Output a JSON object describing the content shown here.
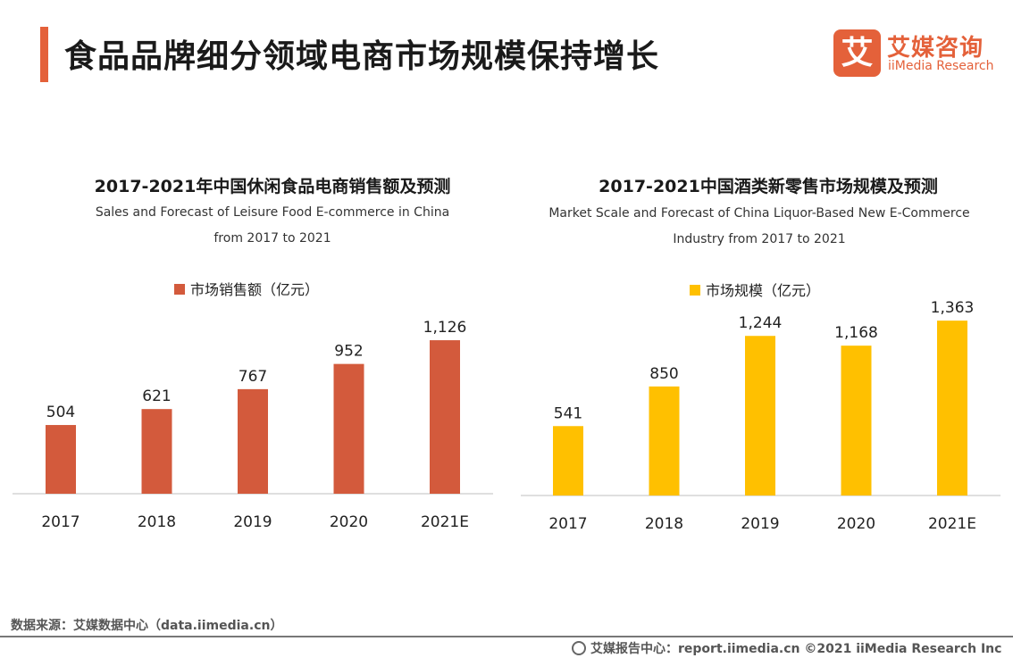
{
  "page": {
    "title": "食品品牌细分领域电商市场规模保持增长"
  },
  "logo": {
    "mark": "艾",
    "name_cn": "艾媒咨询",
    "name_en": "iiMedia Research"
  },
  "footer": {
    "source_left": "数据来源：艾媒数据中心（data.iimedia.cn）",
    "source_right": "艾媒报告中心：report.iimedia.cn ©2021  iiMedia Research  Inc"
  },
  "chart_data": [
    {
      "type": "bar",
      "title": "2017-2021年中国休闲食品电商销售额及预测",
      "subtitle_line1": "Sales and Forecast of Leisure Food E-commerce in China",
      "subtitle_line2": "from 2017 to 2021",
      "categories": [
        "2017",
        "2018",
        "2019",
        "2020",
        "2021E"
      ],
      "series": [
        {
          "name": "市场销售额（亿元）",
          "values": [
            504,
            621,
            767,
            952,
            1126
          ],
          "labels": [
            "504",
            "621",
            "767",
            "952",
            "1,126"
          ],
          "color": "#d35a3c"
        }
      ],
      "legend_position": "top-center"
    },
    {
      "type": "bar",
      "title": "2017-2021中国酒类新零售市场规模及预测",
      "subtitle_line1": "Market Scale and Forecast of China  Liquor-Based New E-Commerce",
      "subtitle_line2": "Industry from 2017 to 2021",
      "categories": [
        "2017",
        "2018",
        "2019",
        "2020",
        "2021E"
      ],
      "series": [
        {
          "name": "市场规模（亿元）",
          "values": [
            541,
            850,
            1244,
            1168,
            1363
          ],
          "labels": [
            "541",
            "850",
            "1,244",
            "1,168",
            "1,363"
          ],
          "color": "#ffc000"
        }
      ],
      "legend_position": "top-center"
    }
  ]
}
